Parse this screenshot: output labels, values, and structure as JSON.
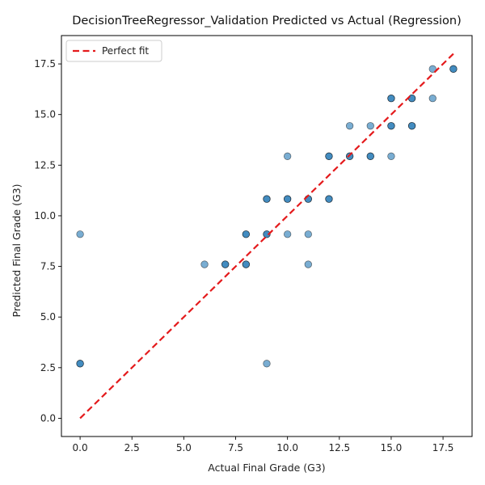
{
  "chart_data": {
    "type": "scatter",
    "title": "DecisionTreeRegressor_Validation Predicted vs Actual (Regression)",
    "xlabel": "Actual Final Grade (G3)",
    "ylabel": "Predicted Final Grade (G3)",
    "xlim": [
      -0.9,
      18.9
    ],
    "ylim": [
      -0.9,
      18.9
    ],
    "xticks": [
      0.0,
      2.5,
      5.0,
      7.5,
      10.0,
      12.5,
      15.0,
      17.5
    ],
    "yticks": [
      0.0,
      2.5,
      5.0,
      7.5,
      10.0,
      12.5,
      15.0,
      17.5
    ],
    "xtick_labels": [
      "0.0",
      "2.5",
      "5.0",
      "7.5",
      "10.0",
      "12.5",
      "15.0",
      "17.5"
    ],
    "ytick_labels": [
      "0.0",
      "2.5",
      "5.0",
      "7.5",
      "10.0",
      "12.5",
      "15.0",
      "17.5"
    ],
    "grid": false,
    "legend": {
      "position": "top-left",
      "entries": [
        "Perfect fit"
      ]
    },
    "point_color": "#1f77b4",
    "line_color": "#e41a1c",
    "series": [
      {
        "values": [
          [
            0,
            9.09
          ],
          [
            0,
            2.7
          ],
          [
            0,
            2.7
          ],
          [
            6,
            7.6
          ],
          [
            7,
            7.6
          ],
          [
            7,
            7.6
          ],
          [
            8,
            9.09
          ],
          [
            8,
            9.09
          ],
          [
            8,
            7.6
          ],
          [
            8,
            7.6
          ],
          [
            9,
            10.83
          ],
          [
            9,
            10.83
          ],
          [
            9,
            9.09
          ],
          [
            9,
            9.09
          ],
          [
            9,
            2.7
          ],
          [
            10,
            10.83
          ],
          [
            10,
            10.83
          ],
          [
            10,
            9.09
          ],
          [
            10,
            12.94
          ],
          [
            11,
            10.83
          ],
          [
            11,
            10.83
          ],
          [
            11,
            9.09
          ],
          [
            11,
            7.6
          ],
          [
            12,
            12.94
          ],
          [
            12,
            12.94
          ],
          [
            12,
            10.83
          ],
          [
            12,
            10.83
          ],
          [
            13,
            12.94
          ],
          [
            13,
            12.94
          ],
          [
            13,
            14.44
          ],
          [
            14,
            12.94
          ],
          [
            14,
            12.94
          ],
          [
            14,
            14.44
          ],
          [
            15,
            15.8
          ],
          [
            15,
            15.8
          ],
          [
            15,
            14.44
          ],
          [
            15,
            14.44
          ],
          [
            15,
            12.94
          ],
          [
            16,
            15.8
          ],
          [
            16,
            15.8
          ],
          [
            16,
            14.44
          ],
          [
            16,
            14.44
          ],
          [
            17,
            17.25
          ],
          [
            17,
            15.8
          ],
          [
            18,
            17.25
          ],
          [
            18,
            17.25
          ]
        ]
      }
    ],
    "reference_line": {
      "name": "Perfect fit",
      "points": [
        [
          0,
          0
        ],
        [
          18,
          18
        ]
      ]
    }
  }
}
